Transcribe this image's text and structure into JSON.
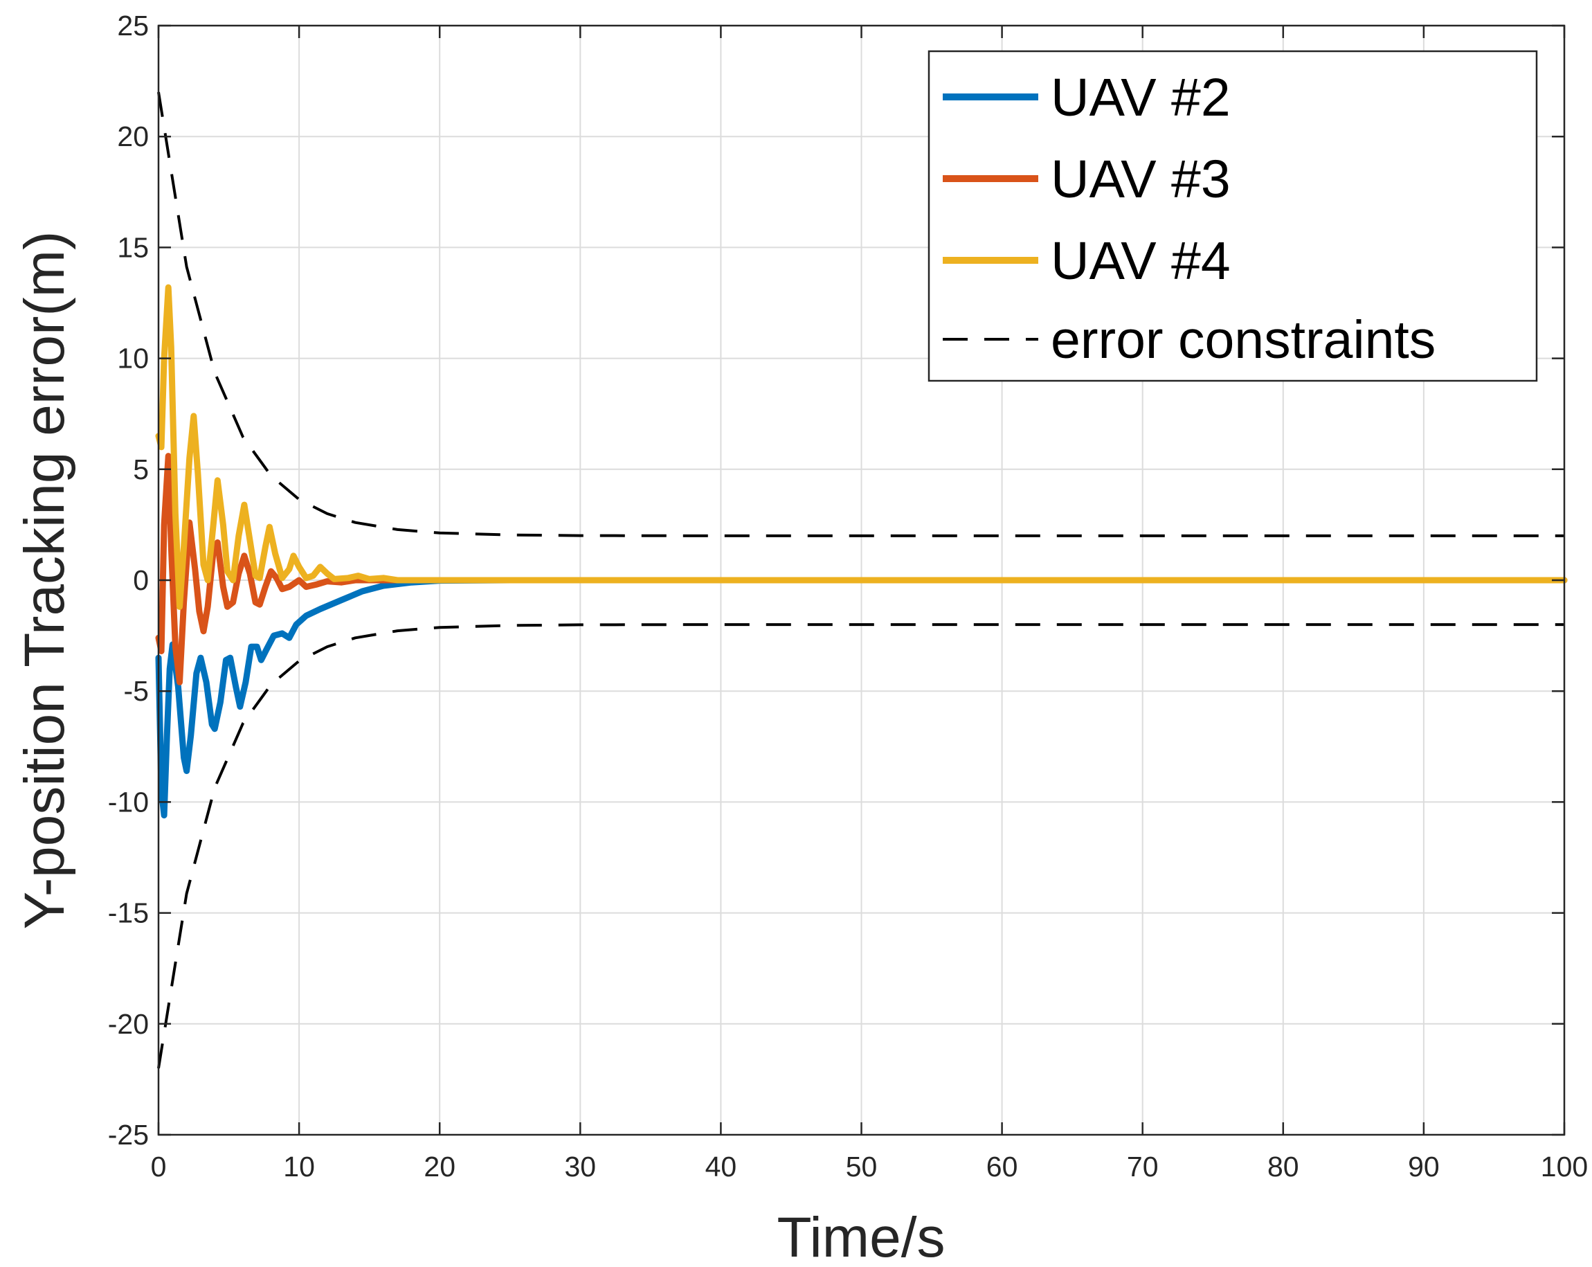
{
  "chart_data": {
    "type": "line",
    "title": "",
    "xlabel": "Time/s",
    "ylabel": "Y-position Tracking error(m)",
    "xlim": [
      0,
      100
    ],
    "ylim": [
      -25,
      25
    ],
    "xticks": [
      0,
      10,
      20,
      30,
      40,
      50,
      60,
      70,
      80,
      90,
      100
    ],
    "yticks": [
      -25,
      -20,
      -15,
      -10,
      -5,
      0,
      5,
      10,
      15,
      20,
      25
    ],
    "grid": true,
    "legend_position": "top-right",
    "series": [
      {
        "name": "UAV #2",
        "color": "#0072BD",
        "style": "solid",
        "points": [
          [
            0,
            -3.5
          ],
          [
            0.2,
            -9.5
          ],
          [
            0.4,
            -10.6
          ],
          [
            0.6,
            -7.0
          ],
          [
            0.8,
            -4.0
          ],
          [
            1.0,
            -2.9
          ],
          [
            1.4,
            -4.8
          ],
          [
            1.8,
            -8.0
          ],
          [
            2.0,
            -8.6
          ],
          [
            2.3,
            -7.0
          ],
          [
            2.7,
            -4.2
          ],
          [
            3.0,
            -3.5
          ],
          [
            3.4,
            -4.6
          ],
          [
            3.8,
            -6.5
          ],
          [
            4.0,
            -6.7
          ],
          [
            4.4,
            -5.5
          ],
          [
            4.8,
            -3.6
          ],
          [
            5.1,
            -3.5
          ],
          [
            5.5,
            -4.8
          ],
          [
            5.8,
            -5.7
          ],
          [
            6.2,
            -4.6
          ],
          [
            6.6,
            -3.0
          ],
          [
            7.0,
            -3.0
          ],
          [
            7.3,
            -3.6
          ],
          [
            7.7,
            -3.1
          ],
          [
            8.2,
            -2.5
          ],
          [
            8.8,
            -2.4
          ],
          [
            9.3,
            -2.6
          ],
          [
            9.8,
            -2.0
          ],
          [
            10.5,
            -1.6
          ],
          [
            11.5,
            -1.3
          ],
          [
            13,
            -0.9
          ],
          [
            14.5,
            -0.5
          ],
          [
            16,
            -0.25
          ],
          [
            18,
            -0.1
          ],
          [
            20,
            -0.02
          ],
          [
            25,
            0
          ],
          [
            100,
            0
          ]
        ]
      },
      {
        "name": "UAV #3",
        "color": "#D95319",
        "style": "solid",
        "points": [
          [
            0,
            -2.6
          ],
          [
            0.2,
            -3.2
          ],
          [
            0.4,
            2.5
          ],
          [
            0.7,
            5.6
          ],
          [
            0.9,
            1.5
          ],
          [
            1.2,
            -3.0
          ],
          [
            1.5,
            -4.6
          ],
          [
            1.8,
            -1.0
          ],
          [
            2.2,
            2.6
          ],
          [
            2.6,
            0.5
          ],
          [
            2.9,
            -1.4
          ],
          [
            3.2,
            -2.3
          ],
          [
            3.5,
            -1.2
          ],
          [
            3.9,
            1.3
          ],
          [
            4.2,
            1.7
          ],
          [
            4.6,
            -0.3
          ],
          [
            4.9,
            -1.2
          ],
          [
            5.3,
            -1.0
          ],
          [
            5.7,
            0.3
          ],
          [
            6.1,
            1.1
          ],
          [
            6.5,
            0.3
          ],
          [
            6.9,
            -1.0
          ],
          [
            7.2,
            -1.1
          ],
          [
            7.6,
            -0.3
          ],
          [
            8.0,
            0.4
          ],
          [
            8.4,
            0.1
          ],
          [
            8.8,
            -0.4
          ],
          [
            9.3,
            -0.3
          ],
          [
            10.0,
            0.0
          ],
          [
            10.5,
            -0.3
          ],
          [
            11.2,
            -0.2
          ],
          [
            12,
            -0.05
          ],
          [
            13,
            -0.1
          ],
          [
            14,
            0.0
          ],
          [
            100,
            0
          ]
        ]
      },
      {
        "name": "UAV #4",
        "color": "#EDB120",
        "style": "solid",
        "points": [
          [
            0,
            6.5
          ],
          [
            0.2,
            6.0
          ],
          [
            0.4,
            10.0
          ],
          [
            0.7,
            13.2
          ],
          [
            0.9,
            10.5
          ],
          [
            1.2,
            3.0
          ],
          [
            1.5,
            -1.2
          ],
          [
            1.8,
            1.5
          ],
          [
            2.2,
            5.5
          ],
          [
            2.5,
            7.4
          ],
          [
            2.8,
            4.8
          ],
          [
            3.2,
            0.7
          ],
          [
            3.5,
            0.0
          ],
          [
            3.9,
            2.5
          ],
          [
            4.2,
            4.5
          ],
          [
            4.6,
            2.5
          ],
          [
            4.9,
            0.4
          ],
          [
            5.3,
            0.0
          ],
          [
            5.7,
            2.0
          ],
          [
            6.1,
            3.4
          ],
          [
            6.5,
            1.8
          ],
          [
            6.9,
            0.2
          ],
          [
            7.2,
            0.1
          ],
          [
            7.6,
            1.5
          ],
          [
            7.9,
            2.4
          ],
          [
            8.3,
            1.2
          ],
          [
            8.8,
            0.1
          ],
          [
            9.3,
            0.5
          ],
          [
            9.6,
            1.1
          ],
          [
            10.0,
            0.6
          ],
          [
            10.5,
            0.1
          ],
          [
            11.0,
            0.2
          ],
          [
            11.5,
            0.6
          ],
          [
            12.0,
            0.3
          ],
          [
            12.5,
            0.05
          ],
          [
            13.5,
            0.1
          ],
          [
            14.2,
            0.2
          ],
          [
            15,
            0.05
          ],
          [
            16,
            0.1
          ],
          [
            17,
            0.0
          ],
          [
            100,
            0
          ]
        ]
      },
      {
        "name": "error constraints",
        "color": "#000000",
        "style": "dashed",
        "bound": {
          "rho0": 22,
          "rho_inf": 2,
          "decay_rate": 0.25
        },
        "points": [
          [
            0,
            22
          ],
          [
            2,
            14.13
          ],
          [
            4,
            9.36
          ],
          [
            6,
            6.46
          ],
          [
            8,
            4.71
          ],
          [
            10,
            3.64
          ],
          [
            12,
            3.0
          ],
          [
            14,
            2.6
          ],
          [
            17,
            2.28
          ],
          [
            20,
            2.13
          ],
          [
            25,
            2.04
          ],
          [
            30,
            2.01
          ],
          [
            40,
            2.0
          ],
          [
            100,
            2.0
          ]
        ]
      }
    ]
  },
  "legend": {
    "items": [
      {
        "label": "UAV #2",
        "color": "#0072BD",
        "style": "solid"
      },
      {
        "label": "UAV #3",
        "color": "#D95319",
        "style": "solid"
      },
      {
        "label": "UAV #4",
        "color": "#EDB120",
        "style": "solid"
      },
      {
        "label": "error constraints",
        "color": "#000000",
        "style": "dashed"
      }
    ]
  }
}
